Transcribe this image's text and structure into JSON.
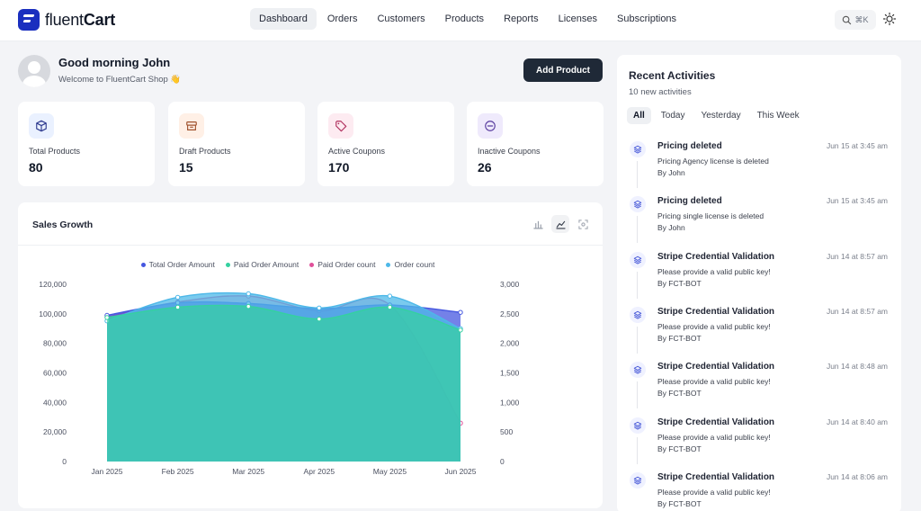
{
  "app": {
    "logo_text_light": "fluent",
    "logo_text_bold": "Cart"
  },
  "nav": {
    "items": [
      {
        "label": "Dashboard",
        "active": true
      },
      {
        "label": "Orders"
      },
      {
        "label": "Customers"
      },
      {
        "label": "Products"
      },
      {
        "label": "Reports"
      },
      {
        "label": "Licenses"
      },
      {
        "label": "Subscriptions"
      }
    ],
    "search_shortcut": "⌘K",
    "search_icon": "search-icon",
    "theme_icon": "sun-icon"
  },
  "greeting": {
    "title": "Good morning John",
    "subtitle": "Welcome to FluentCart Shop 👋",
    "add_button": "Add Product"
  },
  "stats": [
    {
      "label": "Total Products",
      "value": "80",
      "icon": "box-icon",
      "color": "#eaf1ff",
      "stroke": "#2f3b8f"
    },
    {
      "label": "Draft Products",
      "value": "15",
      "icon": "archive-icon",
      "color": "#fff0e6",
      "stroke": "#a0522d"
    },
    {
      "label": "Active Coupons",
      "value": "170",
      "icon": "tag-icon",
      "color": "#fdebf1",
      "stroke": "#b0305e"
    },
    {
      "label": "Inactive Coupons",
      "value": "26",
      "icon": "minus-circle-icon",
      "color": "#efeafc",
      "stroke": "#5a3ea0"
    }
  ],
  "sales": {
    "title": "Sales Growth",
    "tools": [
      "bar-chart-icon",
      "line-chart-icon",
      "screenshot-icon"
    ]
  },
  "chart_data": {
    "type": "area",
    "title": "Sales Growth",
    "categories": [
      "Jan 2025",
      "Feb 2025",
      "Mar 2025",
      "Apr 2025",
      "May 2025",
      "Jun 2025"
    ],
    "y_left": {
      "ticks": [
        "0",
        "20,000",
        "40,000",
        "60,000",
        "80,000",
        "100,000",
        "120,000"
      ],
      "lim": [
        0,
        120000
      ]
    },
    "y_right": {
      "ticks": [
        "0",
        "500",
        "1,000",
        "1,500",
        "2,000",
        "2,500",
        "3,000"
      ],
      "lim": [
        0,
        3000
      ]
    },
    "legend_position": "top",
    "series": [
      {
        "name": "Total Order Amount",
        "axis": "left",
        "color": "#4557e0",
        "values": [
          99000,
          107500,
          107000,
          103500,
          106000,
          101000
        ]
      },
      {
        "name": "Paid Order Amount",
        "axis": "left",
        "color": "#34d1a0",
        "values": [
          97500,
          104500,
          105000,
          96500,
          104500,
          89000
        ]
      },
      {
        "name": "Paid Order count",
        "axis": "right",
        "color": "#e0509a",
        "values": [
          2450,
          2700,
          2800,
          2550,
          2650,
          650
        ]
      },
      {
        "name": "Order count",
        "axis": "right",
        "color": "#4db8e8",
        "values": [
          2380,
          2780,
          2840,
          2600,
          2800,
          2250
        ]
      }
    ]
  },
  "activities": {
    "title": "Recent Activities",
    "subtitle": "10 new activities",
    "tabs": [
      {
        "label": "All",
        "active": true
      },
      {
        "label": "Today"
      },
      {
        "label": "Yesterday"
      },
      {
        "label": "This Week"
      }
    ],
    "items": [
      {
        "title": "Pricing deleted",
        "time": "Jun 15 at 3:45 am",
        "desc": "Pricing Agency license is deleted",
        "by": "By John"
      },
      {
        "title": "Pricing deleted",
        "time": "Jun 15 at 3:45 am",
        "desc": "Pricing single license is deleted",
        "by": "By John"
      },
      {
        "title": "Stripe Credential Validation",
        "time": "Jun 14 at 8:57 am",
        "desc": "Please provide a valid public key!",
        "by": "By FCT-BOT"
      },
      {
        "title": "Stripe Credential Validation",
        "time": "Jun 14 at 8:57 am",
        "desc": "Please provide a valid public key!",
        "by": "By FCT-BOT"
      },
      {
        "title": "Stripe Credential Validation",
        "time": "Jun 14 at 8:48 am",
        "desc": "Please provide a valid public key!",
        "by": "By FCT-BOT"
      },
      {
        "title": "Stripe Credential Validation",
        "time": "Jun 14 at 8:40 am",
        "desc": "Please provide a valid public key!",
        "by": "By FCT-BOT"
      },
      {
        "title": "Stripe Credential Validation",
        "time": "Jun 14 at 8:06 am",
        "desc": "Please provide a valid public key!",
        "by": "By FCT-BOT"
      }
    ]
  }
}
